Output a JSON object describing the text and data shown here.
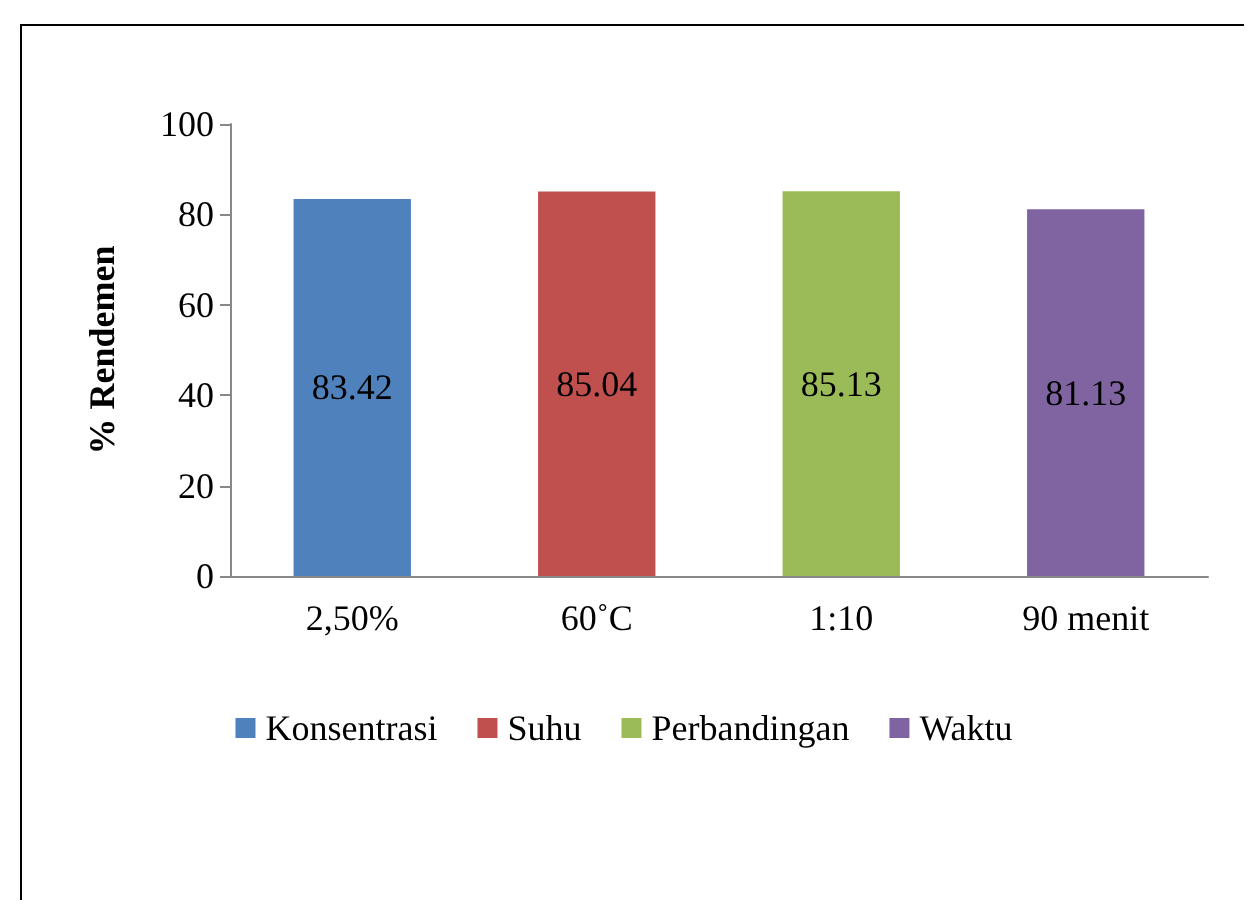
{
  "chart_data": {
    "type": "bar",
    "ylabel": "% Rendemen",
    "categories": [
      "2,50%",
      "60˚C",
      "1:10",
      "90 menit"
    ],
    "series": [
      {
        "name": "Konsentrasi",
        "color": "#4f81bd",
        "values": [
          83.42,
          null,
          null,
          null
        ]
      },
      {
        "name": "Suhu",
        "color": "#c0504d",
        "values": [
          null,
          85.04,
          null,
          null
        ]
      },
      {
        "name": "Perbandingan",
        "color": "#9bbb59",
        "values": [
          null,
          null,
          85.13,
          null
        ]
      },
      {
        "name": "Waktu",
        "color": "#8064a2",
        "values": [
          null,
          null,
          null,
          81.13
        ]
      }
    ],
    "ylim": [
      0,
      100
    ],
    "yticks": [
      0,
      20,
      40,
      60,
      80,
      100
    ],
    "data_labels": true,
    "legend": "bottom",
    "grid": false
  }
}
